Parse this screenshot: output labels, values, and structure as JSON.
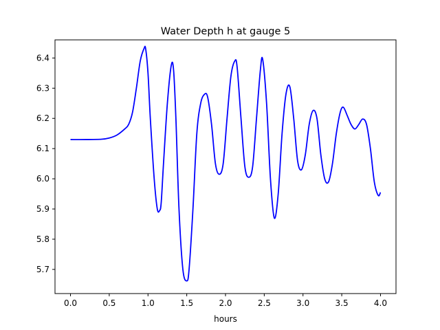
{
  "chart_data": {
    "type": "line",
    "title": "Water Depth h at gauge 5",
    "xlabel": "hours",
    "ylabel": "",
    "xlim": [
      -0.2,
      4.2
    ],
    "ylim": [
      5.62,
      6.46
    ],
    "xticks": [
      "0.0",
      "0.5",
      "1.0",
      "1.5",
      "2.0",
      "2.5",
      "3.0",
      "3.5",
      "4.0"
    ],
    "yticks": [
      "5.7",
      "5.8",
      "5.9",
      "6.0",
      "6.1",
      "6.2",
      "6.3",
      "6.4"
    ],
    "grid": false,
    "series": [
      {
        "color": "#0000ff",
        "x": [
          0.0,
          0.2,
          0.4,
          0.5,
          0.6,
          0.7,
          0.75,
          0.8,
          0.85,
          0.9,
          0.95,
          0.97,
          1.0,
          1.03,
          1.08,
          1.12,
          1.15,
          1.17,
          1.2,
          1.25,
          1.3,
          1.33,
          1.36,
          1.4,
          1.45,
          1.5,
          1.53,
          1.58,
          1.63,
          1.68,
          1.73,
          1.77,
          1.82,
          1.87,
          1.92,
          1.97,
          2.02,
          2.07,
          2.12,
          2.15,
          2.2,
          2.25,
          2.3,
          2.35,
          2.4,
          2.45,
          2.48,
          2.53,
          2.58,
          2.63,
          2.68,
          2.73,
          2.78,
          2.83,
          2.88,
          2.93,
          2.98,
          3.03,
          3.08,
          3.13,
          3.18,
          3.23,
          3.28,
          3.33,
          3.38,
          3.43,
          3.48,
          3.52,
          3.57,
          3.62,
          3.67,
          3.72,
          3.77,
          3.82,
          3.87,
          3.92,
          3.97,
          4.0
        ],
        "y": [
          6.13,
          6.13,
          6.131,
          6.135,
          6.145,
          6.165,
          6.18,
          6.22,
          6.3,
          6.39,
          6.432,
          6.43,
          6.35,
          6.2,
          6.0,
          5.9,
          5.895,
          5.92,
          6.05,
          6.25,
          6.375,
          6.36,
          6.2,
          5.9,
          5.7,
          5.662,
          5.7,
          5.9,
          6.15,
          6.25,
          6.28,
          6.27,
          6.18,
          6.05,
          6.015,
          6.05,
          6.2,
          6.34,
          6.39,
          6.37,
          6.2,
          6.04,
          6.005,
          6.04,
          6.2,
          6.36,
          6.395,
          6.25,
          6.0,
          5.87,
          5.95,
          6.15,
          6.28,
          6.305,
          6.2,
          6.06,
          6.03,
          6.08,
          6.18,
          6.226,
          6.2,
          6.08,
          6.0,
          5.99,
          6.05,
          6.15,
          6.22,
          6.237,
          6.21,
          6.18,
          6.165,
          6.18,
          6.198,
          6.18,
          6.1,
          5.99,
          5.945,
          5.955
        ]
      }
    ]
  }
}
